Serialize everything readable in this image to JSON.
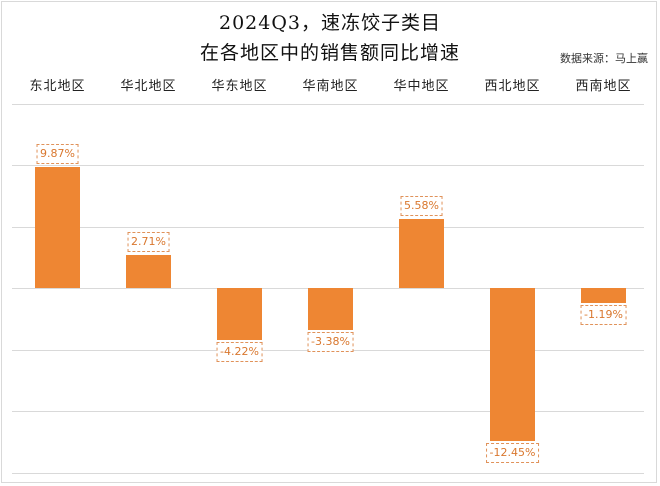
{
  "chart_data": {
    "type": "bar",
    "title": "2024Q3，速冻饺子类目 在各地区中的销售额同比增速",
    "title_lines": [
      "2024Q3，速冻饺子类目",
      "在各地区中的销售额同比增速"
    ],
    "source": "数据来源：马上赢",
    "categories": [
      "东北地区",
      "华北地区",
      "华东地区",
      "华南地区",
      "华中地区",
      "西北地区",
      "西南地区"
    ],
    "values": [
      9.87,
      2.71,
      -4.22,
      -3.38,
      5.58,
      -12.45,
      -1.19
    ],
    "labels": [
      "9.87%",
      "2.71%",
      "-4.22%",
      "-3.38%",
      "5.58%",
      "-12.45%",
      "-1.19%"
    ],
    "unit": "%",
    "xlabel": "",
    "ylabel": "",
    "ylim": [
      -15,
      15
    ],
    "gridlines": [
      15,
      10,
      5,
      0,
      -5,
      -10,
      -15
    ],
    "grid": true,
    "legend": false,
    "category_axis_position": "top",
    "bar_color": "#ee8633"
  }
}
